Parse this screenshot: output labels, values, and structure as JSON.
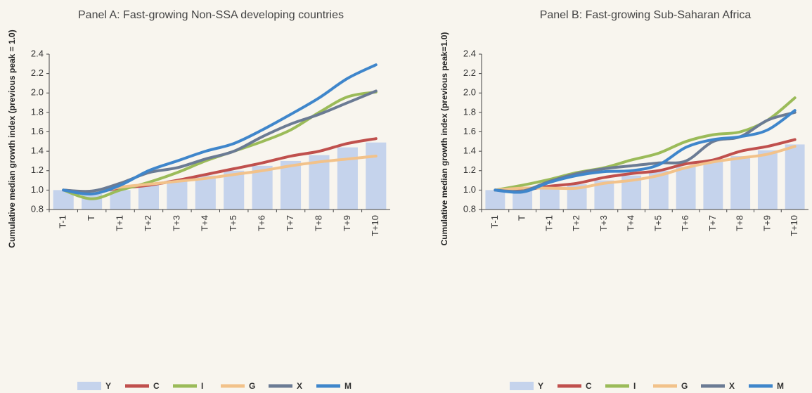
{
  "chart_data": [
    {
      "type": "combo",
      "title": "Panel A: Fast-growing Non-SSA developing countries",
      "y_label": "Cumulative median growth index (previous peak = 1.0)",
      "categories": [
        "T-1",
        "T",
        "T+1",
        "T+2",
        "T+3",
        "T+4",
        "T+5",
        "T+6",
        "T+7",
        "T+8",
        "T+9",
        "T+10"
      ],
      "ylim": [
        0.8,
        2.4
      ],
      "yticks": [
        0.8,
        {
          "value": 1,
          "label": "1.0"
        },
        1.2,
        1.4,
        1.6,
        1.8,
        {
          "value": 2,
          "label": "2.0"
        },
        2.2,
        2.4
      ],
      "series": [
        {
          "name": "Y",
          "type": "bar",
          "color": "#c5d3ec",
          "values": [
            1.0,
            0.96,
            1.0,
            1.05,
            1.1,
            1.15,
            1.2,
            1.25,
            1.3,
            1.36,
            1.44,
            1.49
          ]
        },
        {
          "name": "C",
          "type": "line",
          "color": "#c0504d",
          "values": [
            1.0,
            0.98,
            1.02,
            1.05,
            1.1,
            1.16,
            1.22,
            1.28,
            1.35,
            1.4,
            1.48,
            1.53
          ]
        },
        {
          "name": "I",
          "type": "line",
          "color": "#9bbb59",
          "values": [
            1.0,
            0.91,
            1.0,
            1.08,
            1.18,
            1.3,
            1.4,
            1.5,
            1.62,
            1.8,
            1.96,
            2.01
          ]
        },
        {
          "name": "G",
          "type": "line",
          "color": "#f2c28a",
          "values": [
            1.0,
            0.98,
            1.03,
            1.06,
            1.09,
            1.12,
            1.16,
            1.2,
            1.25,
            1.29,
            1.32,
            1.35
          ]
        },
        {
          "name": "X",
          "type": "line",
          "color": "#6b7b94",
          "values": [
            1.0,
            0.99,
            1.07,
            1.18,
            1.23,
            1.32,
            1.4,
            1.55,
            1.68,
            1.78,
            1.9,
            2.02
          ]
        },
        {
          "name": "M",
          "type": "line",
          "color": "#3f86cb",
          "values": [
            1.0,
            0.96,
            1.05,
            1.2,
            1.3,
            1.4,
            1.48,
            1.62,
            1.78,
            1.95,
            2.15,
            2.29
          ]
        }
      ]
    },
    {
      "type": "combo",
      "title": "Panel B: Fast-growing Sub-Saharan Africa",
      "y_label": "Cumulative median growth index (previous peak=1.0)",
      "categories": [
        "T-1",
        "T",
        "T+1",
        "T+2",
        "T+3",
        "T+4",
        "T+5",
        "T+6",
        "T+7",
        "T+8",
        "T+9",
        "T+10"
      ],
      "ylim": [
        0.8,
        2.4
      ],
      "yticks": [
        0.8,
        {
          "value": 1,
          "label": "1.0"
        },
        1.2,
        1.4,
        1.6,
        1.8,
        {
          "value": 2,
          "label": "2.0"
        },
        2.2,
        2.4
      ],
      "series": [
        {
          "name": "Y",
          "type": "bar",
          "color": "#c5d3ec",
          "values": [
            1.0,
            1.0,
            1.02,
            1.06,
            1.1,
            1.15,
            1.2,
            1.24,
            1.3,
            1.35,
            1.41,
            1.47
          ]
        },
        {
          "name": "C",
          "type": "line",
          "color": "#c0504d",
          "values": [
            1.0,
            1.0,
            1.04,
            1.07,
            1.13,
            1.17,
            1.2,
            1.27,
            1.31,
            1.4,
            1.45,
            1.52
          ]
        },
        {
          "name": "I",
          "type": "line",
          "color": "#9bbb59",
          "values": [
            1.0,
            1.05,
            1.11,
            1.18,
            1.23,
            1.31,
            1.38,
            1.5,
            1.57,
            1.6,
            1.72,
            1.95
          ]
        },
        {
          "name": "G",
          "type": "line",
          "color": "#f2c28a",
          "values": [
            1.0,
            1.02,
            1.02,
            1.02,
            1.07,
            1.1,
            1.15,
            1.23,
            1.29,
            1.33,
            1.37,
            1.45
          ]
        },
        {
          "name": "X",
          "type": "line",
          "color": "#6b7b94",
          "values": [
            1.0,
            0.99,
            1.09,
            1.17,
            1.22,
            1.25,
            1.28,
            1.3,
            1.5,
            1.55,
            1.72,
            1.8
          ]
        },
        {
          "name": "M",
          "type": "line",
          "color": "#3f86cb",
          "values": [
            1.0,
            0.98,
            1.08,
            1.15,
            1.19,
            1.2,
            1.26,
            1.44,
            1.52,
            1.55,
            1.62,
            1.82
          ]
        }
      ]
    }
  ]
}
